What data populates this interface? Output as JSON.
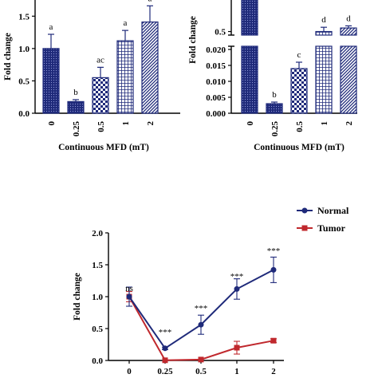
{
  "colors": {
    "navy": "#1f2a7a",
    "red": "#c0282d",
    "axis": "#000000"
  },
  "chart_data": [
    {
      "type": "bar",
      "panel": "top-left",
      "categories": [
        "0",
        "0.25",
        "0.5",
        "1",
        "2"
      ],
      "values": [
        1.0,
        0.18,
        0.55,
        1.12,
        1.41
      ],
      "errors": [
        0.22,
        0.03,
        0.16,
        0.16,
        0.25
      ],
      "significance": [
        "a",
        "b",
        "ac",
        "a",
        "a"
      ],
      "patterns": [
        "dots",
        "dots",
        "checker",
        "grid",
        "hatch"
      ],
      "ylabel": "Fold change",
      "xlabel": "Continuous MFD (mT)",
      "yticks": [
        "0.0",
        "0.5",
        "1.0",
        "1.5"
      ],
      "ylim": [
        0,
        1.75
      ]
    },
    {
      "type": "bar",
      "panel": "top-right",
      "broken_axis": true,
      "categories": [
        "0",
        "0.25",
        "0.5",
        "1",
        "2"
      ],
      "values": [
        1.0,
        0.003,
        0.014,
        0.5,
        0.55
      ],
      "errors": [
        0.0,
        0.0005,
        0.002,
        0.06,
        0.03
      ],
      "significance": [
        "",
        "b",
        "c",
        "d",
        "d"
      ],
      "patterns": [
        "dots",
        "dots",
        "checker",
        "grid",
        "hatch"
      ],
      "ylabel": "Fold change",
      "xlabel": "Continuous MFD (mT)",
      "yticks_lower": [
        "0.000",
        "0.005",
        "0.010",
        "0.015",
        "0.020"
      ],
      "yticks_upper": [
        "0.5",
        "1.0"
      ],
      "ylim_lower": [
        0,
        0.02
      ],
      "ylim_upper": [
        0.45,
        1.1
      ]
    },
    {
      "type": "line",
      "panel": "bottom",
      "x": [
        "0",
        "0.25",
        "0.5",
        "1",
        "2"
      ],
      "yticks": [
        "0.0",
        "0.5",
        "1.0",
        "1.5",
        "2.0"
      ],
      "ylim": [
        0,
        2.0
      ],
      "ylabel": "Fold change",
      "legend_position": "top-right",
      "series": [
        {
          "name": "Normal",
          "values": [
            1.0,
            0.19,
            0.56,
            1.12,
            1.42
          ],
          "errors": [
            0.15,
            0.02,
            0.15,
            0.16,
            0.2
          ],
          "color": "#1f2a7a",
          "marker": "circle"
        },
        {
          "name": "Tumor",
          "values": [
            1.0,
            0.003,
            0.014,
            0.2,
            0.31
          ],
          "errors": [
            0.08,
            0.002,
            0.003,
            0.1,
            0.03
          ],
          "color": "#c0282d",
          "marker": "square"
        }
      ],
      "annotations": [
        "ns",
        "***",
        "***",
        "***",
        "***"
      ]
    }
  ]
}
